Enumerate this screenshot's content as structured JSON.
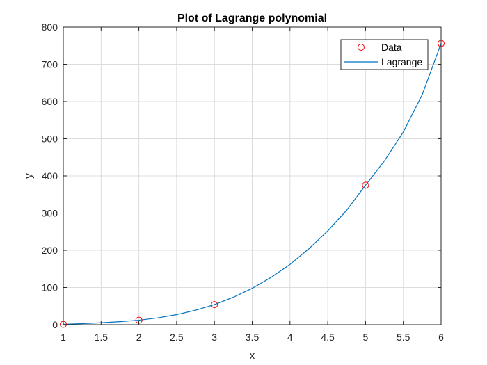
{
  "chart_data": {
    "type": "line",
    "title": "Plot of Lagrange polynomial",
    "xlabel": "x",
    "ylabel": "y",
    "xlim": [
      1,
      6
    ],
    "ylim": [
      0,
      800
    ],
    "x_ticks": [
      1,
      1.5,
      2,
      2.5,
      3,
      3.5,
      4,
      4.5,
      5,
      5.5,
      6
    ],
    "y_ticks": [
      0,
      100,
      200,
      300,
      400,
      500,
      600,
      700,
      800
    ],
    "x_tick_labels": [
      "1",
      "1.5",
      "2",
      "2.5",
      "3",
      "3.5",
      "4",
      "4.5",
      "5",
      "5.5",
      "6"
    ],
    "y_tick_labels": [
      "0",
      "100",
      "200",
      "300",
      "400",
      "500",
      "600",
      "700",
      "800"
    ],
    "grid": true,
    "legend_position": "top-right",
    "series": [
      {
        "name": "Data",
        "kind": "markers",
        "marker": "circle",
        "color": "#ff0000",
        "x": [
          1,
          2,
          3,
          5,
          6
        ],
        "y": [
          1,
          12,
          54,
          375,
          756
        ]
      },
      {
        "name": "Lagrange",
        "kind": "line",
        "color": "#0072bd",
        "x": [
          1,
          1.25,
          1.5,
          1.75,
          2,
          2.25,
          2.5,
          2.75,
          3,
          3.25,
          3.5,
          3.75,
          4,
          4.25,
          4.5,
          4.75,
          5,
          5.25,
          5.5,
          5.75,
          6
        ],
        "y": [
          1,
          2.8,
          5.1,
          8.2,
          12,
          18.3,
          27.1,
          38.9,
          54,
          73.6,
          97.8,
          127.2,
          162,
          204.2,
          252.3,
          307.6,
          375,
          440.3,
          518.1,
          618.2,
          756
        ]
      }
    ]
  }
}
